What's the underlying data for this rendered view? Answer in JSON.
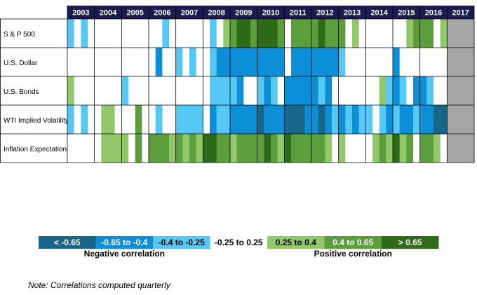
{
  "chart_data": {
    "type": "heatmap",
    "years": [
      "2003",
      "2004",
      "2005",
      "2006",
      "2007",
      "2008",
      "2009",
      "2010",
      "2011",
      "2012",
      "2013",
      "2014",
      "2015",
      "2016",
      "2017"
    ],
    "periods_per_year": 4,
    "null_color": "#a6a6a6",
    "rows": [
      {
        "name": "S & P 500",
        "values": [
          -0.3,
          0,
          -0.3,
          0,
          0,
          0,
          0,
          0,
          0,
          0,
          0,
          0,
          0,
          0,
          -0.3,
          0,
          0,
          0,
          0,
          0,
          0,
          -0.3,
          0,
          0.3,
          0.5,
          0.75,
          0.75,
          0.5,
          0.75,
          0.75,
          0.75,
          0.5,
          0,
          0.5,
          0.5,
          0.5,
          0.5,
          0.75,
          0.5,
          0.5,
          0.5,
          0,
          0.3,
          0,
          0,
          0,
          0,
          0,
          0,
          0,
          0.3,
          0.5,
          0.5,
          0.5,
          0,
          0.3,
          null,
          null,
          null,
          null
        ]
      },
      {
        "name": "U.S. Dollar",
        "values": [
          0,
          0,
          0,
          0,
          0,
          0,
          0,
          0,
          0,
          0,
          0,
          0,
          0,
          -0.5,
          0,
          0,
          -0.3,
          0,
          -0.3,
          0,
          0,
          -0.3,
          -0.5,
          -0.5,
          -0.5,
          -0.5,
          -0.5,
          -0.5,
          -0.5,
          -0.5,
          -0.5,
          -0.5,
          0,
          -0.5,
          -0.5,
          -0.5,
          -0.5,
          -0.5,
          -0.5,
          -0.5,
          -0.3,
          0,
          0,
          0,
          0,
          0,
          0,
          0,
          -0.5,
          0,
          0,
          0,
          0,
          0,
          0,
          0,
          null,
          null,
          null,
          null
        ]
      },
      {
        "name": "U.S. Bonds",
        "values": [
          0.3,
          0,
          0,
          0,
          0,
          0,
          0,
          0,
          -0.3,
          0,
          0,
          0,
          0,
          0,
          0,
          0,
          0,
          0,
          0,
          0,
          0,
          -0.3,
          -0.3,
          -0.3,
          -0.3,
          -0.5,
          0,
          0,
          -0.3,
          -0.5,
          -0.3,
          0,
          -0.5,
          -0.5,
          -0.5,
          -0.5,
          -0.5,
          -0.3,
          -0.5,
          0,
          0,
          0,
          0,
          0,
          0,
          0,
          0.3,
          -0.3,
          -0.5,
          -0.3,
          0,
          -0.5,
          -0.5,
          -0.3,
          0,
          0,
          null,
          null,
          null,
          null
        ]
      },
      {
        "name": "WTI Implied Volatility",
        "values": [
          -0.3,
          0,
          -0.3,
          0,
          0,
          0.3,
          0.3,
          0,
          0,
          0,
          0.5,
          0,
          0,
          -0.3,
          0,
          0,
          -0.3,
          -0.3,
          -0.3,
          -0.3,
          0,
          -0.5,
          -0.3,
          -0.3,
          -0.5,
          -0.5,
          -0.5,
          -0.5,
          -0.75,
          -0.5,
          -0.5,
          -0.5,
          -0.75,
          -0.75,
          -0.75,
          -0.5,
          -0.5,
          -0.75,
          -0.5,
          -0.3,
          -0.5,
          -0.3,
          -0.5,
          -0.3,
          -0.3,
          0,
          -0.3,
          -0.5,
          -0.3,
          -0.5,
          -0.5,
          -0.3,
          -0.5,
          -0.5,
          -0.75,
          -0.75,
          null,
          null,
          null,
          null
        ]
      },
      {
        "name": "Inflation Expectations",
        "values": [
          0,
          0,
          0,
          0,
          0,
          0.3,
          0.3,
          0.3,
          0.3,
          0,
          0.5,
          0,
          0.5,
          0.5,
          0.5,
          0.3,
          0.5,
          0.3,
          0.5,
          0.3,
          0.75,
          0.75,
          0.5,
          0.5,
          0.3,
          0.5,
          0.5,
          0.5,
          0.5,
          0.75,
          0.5,
          0.3,
          0.75,
          0.5,
          0.5,
          0.5,
          0.5,
          0.5,
          0.3,
          0,
          0.3,
          0,
          0,
          0,
          0,
          0.3,
          0.5,
          0.3,
          0.75,
          0.3,
          0.5,
          0,
          0.5,
          0.5,
          0.3,
          0,
          null,
          null,
          null,
          null
        ]
      }
    ],
    "bins": [
      {
        "label": "< -0.65",
        "max": -0.65,
        "color": "#17668a",
        "text_color": "#ffffff"
      },
      {
        "label": "-0.65 to -0.4",
        "min": -0.65,
        "max": -0.4,
        "color": "#0d8fd8",
        "text_color": "#ffffff"
      },
      {
        "label": "-0.4 to -0.25",
        "min": -0.4,
        "max": -0.25,
        "color": "#55c8f6",
        "text_color": "#000000"
      },
      {
        "label": "-0.25 to 0.25",
        "min": -0.25,
        "max": 0.25,
        "color": "#ffffff",
        "text_color": "#000000"
      },
      {
        "label": "0.25 to 0.4",
        "min": 0.25,
        "max": 0.4,
        "color": "#93c86a",
        "text_color": "#000000"
      },
      {
        "label": "0.4 to 0.65",
        "min": 0.4,
        "max": 0.65,
        "color": "#5c9e3c",
        "text_color": "#ffffff"
      },
      {
        "label": "> 0.65",
        "min": 0.65,
        "color": "#2f6a18",
        "text_color": "#ffffff"
      }
    ],
    "legend_groups": [
      "Negative correlation",
      "Positive correlation"
    ],
    "note": "Note:  Correlations computed quarterly"
  }
}
